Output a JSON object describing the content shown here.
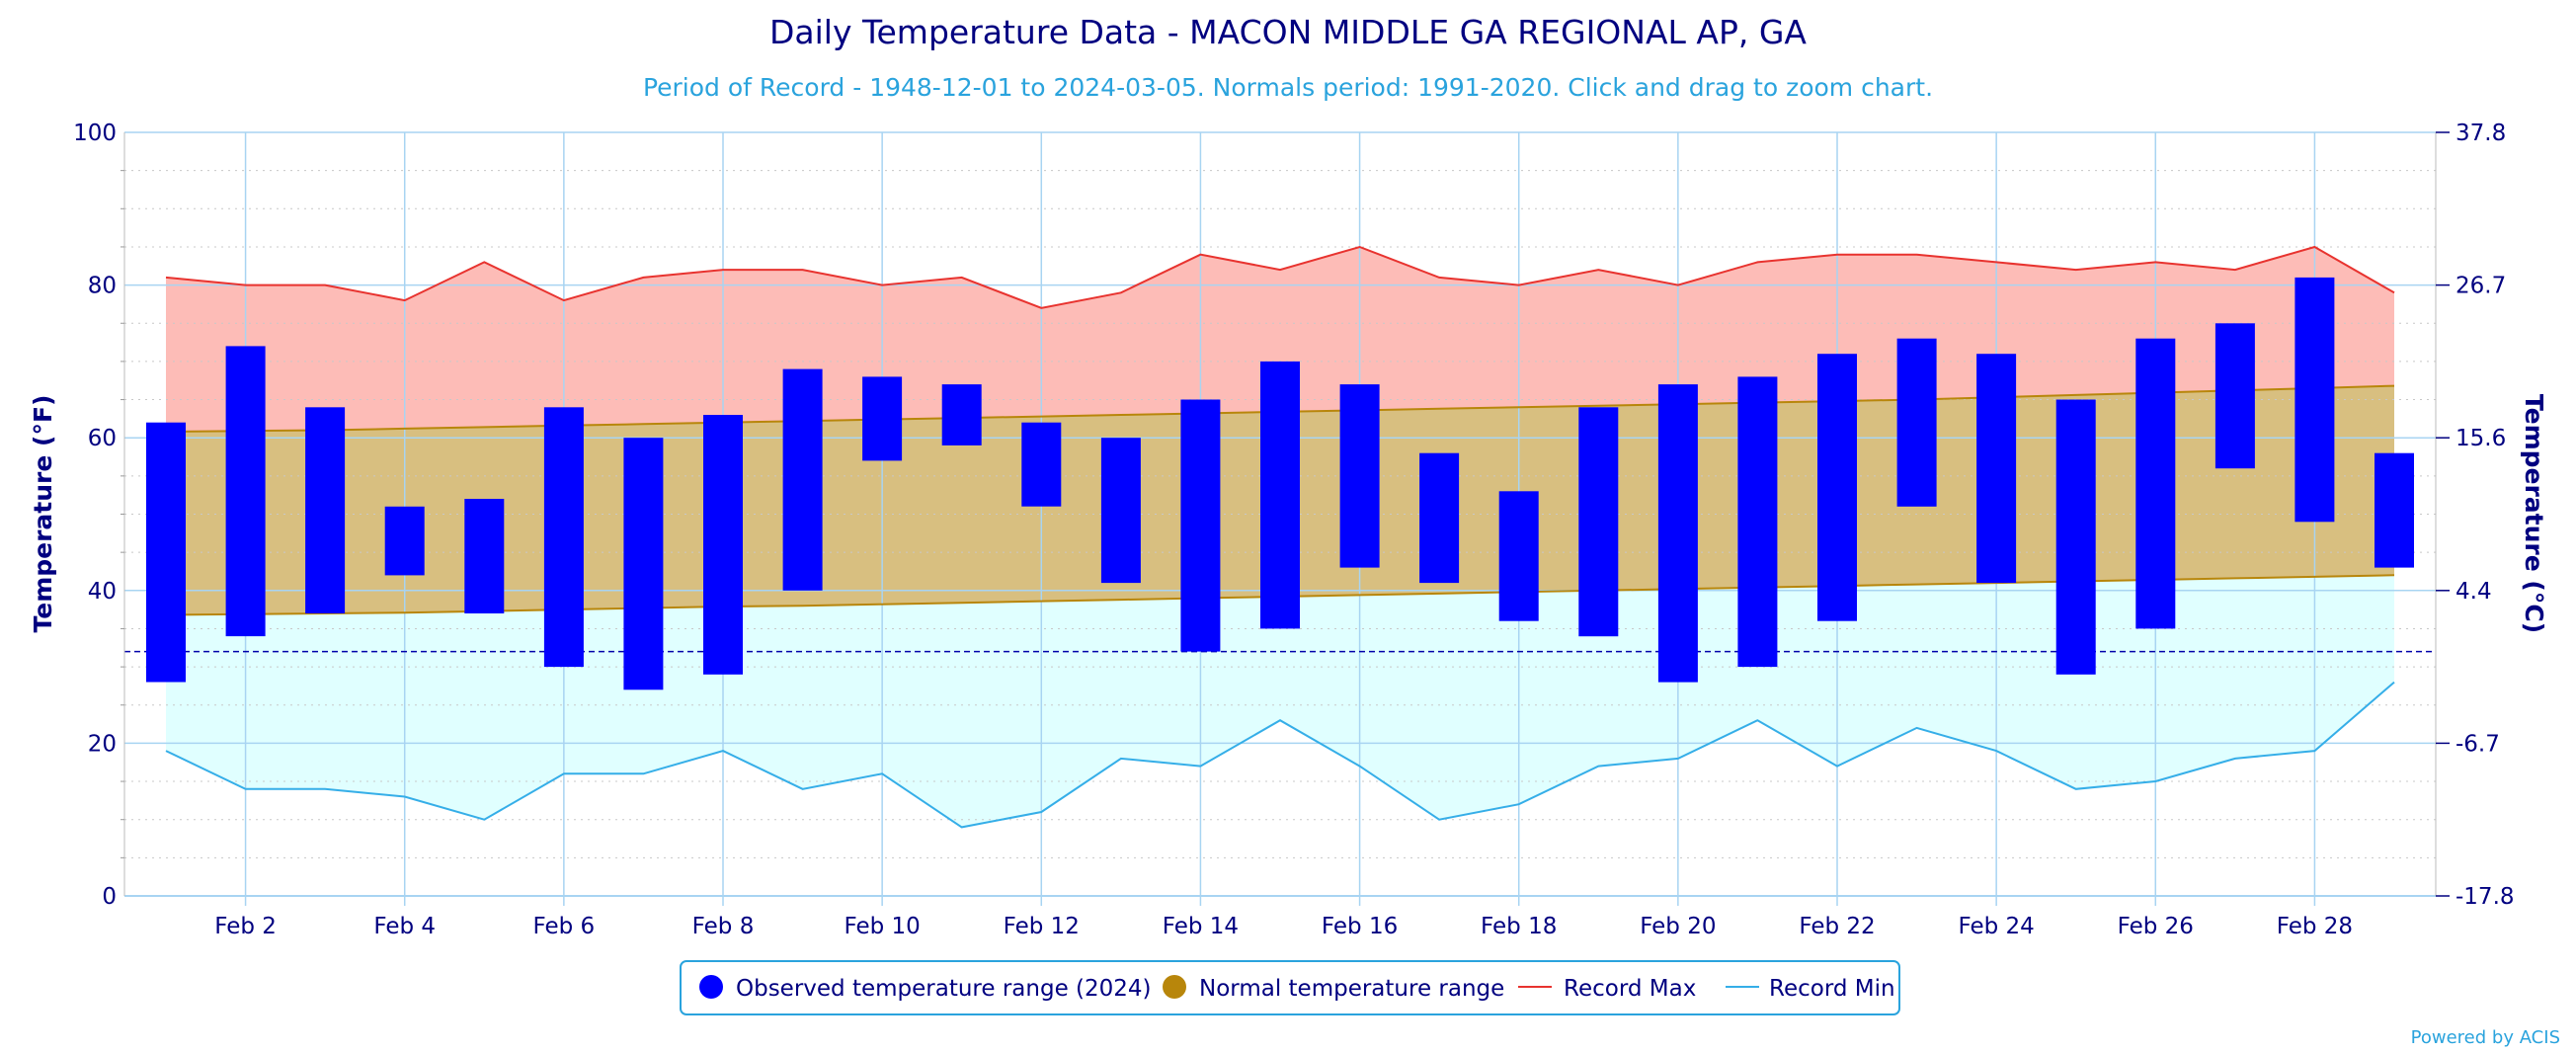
{
  "page": {
    "title": "Daily Temperature Data - MACON MIDDLE GA REGIONAL AP, GA",
    "subtitle": "Period of Record - 1948-12-01 to 2024-03-05. Normals period: 1991-2020. Click and drag to zoom chart.",
    "credit": "Powered by ACIS"
  },
  "colors": {
    "observed": "#0000ff",
    "normal_fill": "#d8bf80",
    "normal_line": "#b8860b",
    "normal_legend": "#b8860b",
    "record_max_fill": "#fdbcb7",
    "record_max_line": "#e8332f",
    "record_min_fill": "#e0ffff",
    "record_min_line": "#35aee8",
    "grid": "#a8d4f2",
    "text": "#000080",
    "freezing_line": "#0000aa"
  },
  "chart_data": {
    "type": "bar",
    "title": "Daily Temperature Data - MACON MIDDLE GA REGIONAL AP, GA",
    "subtitle": "Period of Record - 1948-12-01 to 2024-03-05. Normals period: 1991-2020. Click and drag to zoom chart.",
    "ylabel": "Temperature (°F)",
    "ylabel_right": "Temperature (°C)",
    "ylim": [
      0,
      100
    ],
    "xlim": [
      1,
      29
    ],
    "y_ticks": [
      0,
      20,
      40,
      60,
      80,
      100
    ],
    "y_ticks_right": [
      "-17.8",
      "-6.7",
      "4.4",
      "15.6",
      "26.7",
      "37.8"
    ],
    "x_ticks": [
      {
        "day": 2,
        "label": "Feb 2"
      },
      {
        "day": 4,
        "label": "Feb 4"
      },
      {
        "day": 6,
        "label": "Feb 6"
      },
      {
        "day": 8,
        "label": "Feb 8"
      },
      {
        "day": 10,
        "label": "Feb 10"
      },
      {
        "day": 12,
        "label": "Feb 12"
      },
      {
        "day": 14,
        "label": "Feb 14"
      },
      {
        "day": 16,
        "label": "Feb 16"
      },
      {
        "day": 18,
        "label": "Feb 18"
      },
      {
        "day": 20,
        "label": "Feb 20"
      },
      {
        "day": 22,
        "label": "Feb 22"
      },
      {
        "day": 24,
        "label": "Feb 24"
      },
      {
        "day": 26,
        "label": "Feb 26"
      },
      {
        "day": 28,
        "label": "Feb 28"
      }
    ],
    "freezing_line": 32,
    "grid": true,
    "legend_position": "bottom",
    "legend": [
      {
        "key": "observed",
        "label": "Observed temperature range (2024)",
        "marker": "circle"
      },
      {
        "key": "normal",
        "label": "Normal temperature range",
        "marker": "circle"
      },
      {
        "key": "record_max",
        "label": "Record Max",
        "marker": "line"
      },
      {
        "key": "record_min",
        "label": "Record Min",
        "marker": "line"
      }
    ],
    "days": [
      1,
      2,
      3,
      4,
      5,
      6,
      7,
      8,
      9,
      10,
      11,
      12,
      13,
      14,
      15,
      16,
      17,
      18,
      19,
      20,
      21,
      22,
      23,
      24,
      25,
      26,
      27,
      28,
      29
    ],
    "series": [
      {
        "key": "observed_min",
        "values": [
          28,
          34,
          37,
          42,
          37,
          30,
          27,
          29,
          40,
          57,
          59,
          51,
          41,
          32,
          35,
          43,
          41,
          36,
          34,
          28,
          30,
          36,
          51,
          41,
          29,
          35,
          56,
          49,
          43
        ]
      },
      {
        "key": "observed_max",
        "values": [
          62,
          72,
          64,
          51,
          52,
          64,
          60,
          63,
          69,
          68,
          67,
          62,
          60,
          65,
          70,
          67,
          58,
          53,
          64,
          67,
          68,
          71,
          73,
          71,
          65,
          73,
          75,
          81,
          58
        ]
      },
      {
        "key": "normal_max",
        "values": [
          60.8,
          60.9,
          61.0,
          61.2,
          61.4,
          61.6,
          61.8,
          62.0,
          62.2,
          62.4,
          62.6,
          62.8,
          63.0,
          63.2,
          63.4,
          63.6,
          63.8,
          64.0,
          64.2,
          64.4,
          64.6,
          64.8,
          65.0,
          65.3,
          65.6,
          65.9,
          66.2,
          66.5,
          66.8
        ]
      },
      {
        "key": "normal_min",
        "values": [
          36.8,
          36.9,
          37.0,
          37.1,
          37.3,
          37.5,
          37.7,
          37.9,
          38.0,
          38.2,
          38.4,
          38.6,
          38.8,
          39.0,
          39.2,
          39.4,
          39.6,
          39.8,
          40.0,
          40.2,
          40.4,
          40.6,
          40.8,
          41.0,
          41.2,
          41.4,
          41.6,
          41.8,
          42.0
        ]
      },
      {
        "key": "record_max",
        "values": [
          81,
          80,
          80,
          78,
          83,
          78,
          81,
          82,
          82,
          80,
          81,
          77,
          79,
          84,
          82,
          85,
          81,
          80,
          82,
          80,
          83,
          84,
          84,
          83,
          82,
          83,
          82,
          85,
          79
        ]
      },
      {
        "key": "record_min",
        "values": [
          19,
          14,
          14,
          13,
          10,
          16,
          16,
          19,
          14,
          16,
          9,
          11,
          18,
          17,
          23,
          17,
          10,
          12,
          17,
          18,
          23,
          17,
          22,
          19,
          14,
          15,
          18,
          19,
          28
        ]
      }
    ]
  }
}
